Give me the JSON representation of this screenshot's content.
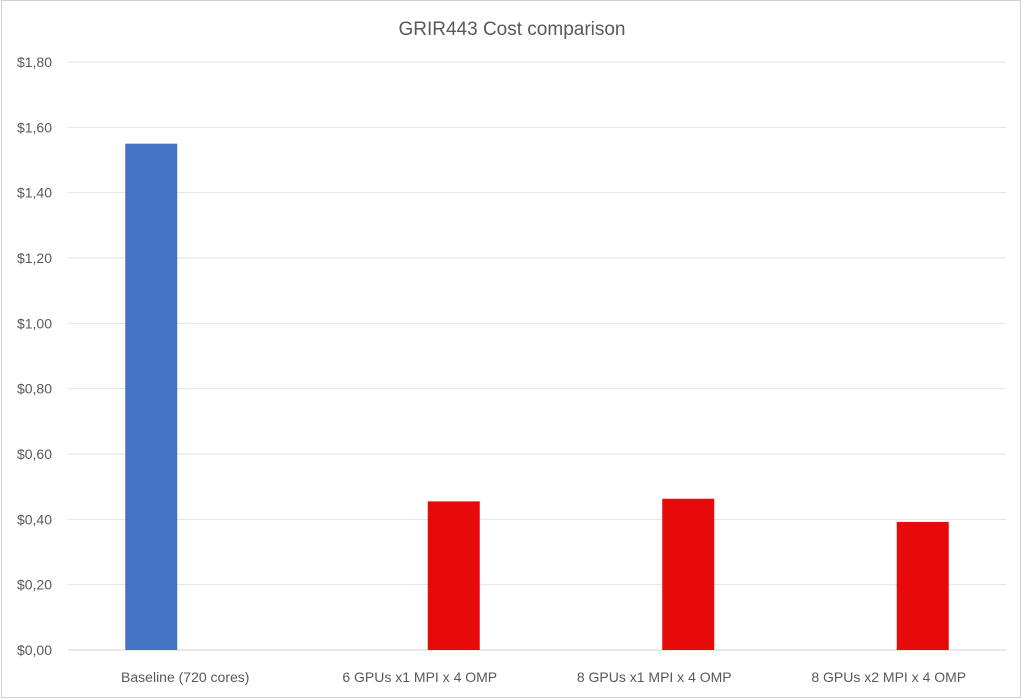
{
  "chart_data": {
    "type": "bar",
    "title": "GRIR443 Cost comparison",
    "xlabel": "",
    "ylabel": "",
    "categories": [
      "Baseline (720 cores)",
      "6 GPUs x1 MPI x 4 OMP",
      "8 GPUs x1 MPI x 4 OMP",
      "8 GPUs x2 MPI x 4 OMP"
    ],
    "series": [
      {
        "values": [
          1.55,
          null,
          null,
          null
        ],
        "color": "#4472C4"
      },
      {
        "values": [
          null,
          0.455,
          0.463,
          0.392
        ],
        "color": "#E60A0A"
      }
    ],
    "ylim": [
      0,
      1.8
    ],
    "yticks": [
      "$0,00",
      "$0,20",
      "$0,40",
      "$0,60",
      "$0,80",
      "$1,00",
      "$1,20",
      "$1,40",
      "$1,60",
      "$1,80"
    ],
    "ytick_values": [
      0,
      0.2,
      0.4,
      0.6,
      0.8,
      1.0,
      1.2,
      1.4,
      1.6,
      1.8
    ],
    "grid": true,
    "legend": "none"
  }
}
